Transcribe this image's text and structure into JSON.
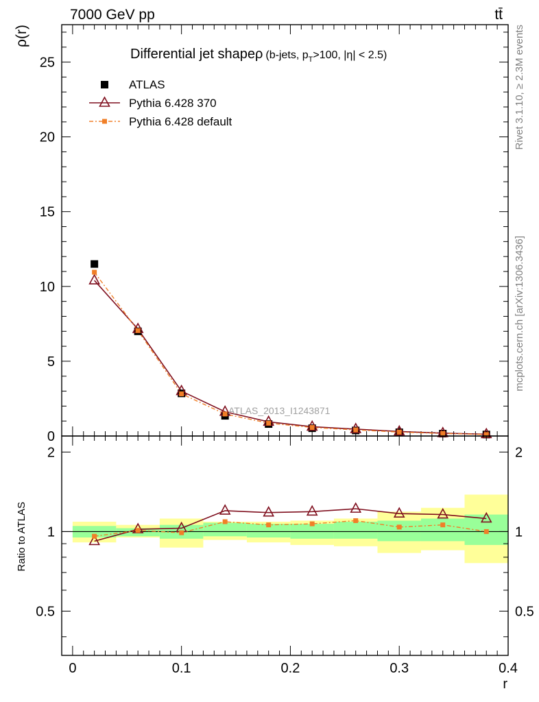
{
  "header": {
    "energy_label": "7000 GeV pp",
    "process_label": "tt̄",
    "side_rivet": "Rivet 3.1.10, ≥ 2.3M events",
    "side_mcplots": "mcplots.cern.ch [arXiv:1306.3436]",
    "watermark": "ATLAS_2013_I1243871"
  },
  "chart_data": [
    {
      "type": "line",
      "title": "Differential jet shape",
      "title_symbol": "ρ",
      "title_detail_pre": "(b-jets, p",
      "title_detail_sub": "T",
      "title_detail_post": ">100, |η| < 2.5)",
      "ylabel": "ρ(r)",
      "xlabel": "",
      "xlim": [
        -0.01,
        0.4
      ],
      "ylim": [
        0,
        27.5
      ],
      "yticks": [
        0,
        5,
        10,
        15,
        20,
        25
      ],
      "ytick_labels": [
        "0",
        "5",
        "10",
        "15",
        "20",
        "25"
      ],
      "legend_position": "top-left",
      "x": [
        0.02,
        0.06,
        0.1,
        0.14,
        0.18,
        0.22,
        0.26,
        0.3,
        0.34,
        0.38
      ],
      "series": [
        {
          "name": "ATLAS",
          "style": "data",
          "color": "#000000",
          "values": [
            11.5,
            7.0,
            2.85,
            1.35,
            0.8,
            0.52,
            0.37,
            0.25,
            0.16,
            0.1
          ]
        },
        {
          "name": "Pythia 6.428 370",
          "style": "line-triangle",
          "color": "#7f0f1e",
          "values": [
            10.4,
            7.15,
            3.0,
            1.62,
            0.95,
            0.62,
            0.46,
            0.3,
            0.19,
            0.12
          ]
        },
        {
          "name": "Pythia 6.428 default",
          "style": "dashdot-square",
          "color": "#f07f28",
          "values": [
            10.95,
            7.05,
            2.82,
            1.47,
            0.86,
            0.57,
            0.41,
            0.26,
            0.17,
            0.1
          ]
        }
      ]
    },
    {
      "type": "line",
      "ylabel": "Ratio to ATLAS",
      "xlabel": "r",
      "xlim": [
        -0.01,
        0.4
      ],
      "ylim": [
        0.34,
        2.3
      ],
      "yticks": [
        0.5,
        1,
        2
      ],
      "ytick_labels": [
        "0.5",
        "1",
        "2"
      ],
      "xticks": [
        0,
        0.1,
        0.2,
        0.3,
        0.4
      ],
      "xtick_labels": [
        "0",
        "0.1",
        "0.2",
        "0.3",
        "0.4"
      ],
      "bins": [
        [
          0.0,
          0.04
        ],
        [
          0.04,
          0.08
        ],
        [
          0.08,
          0.12
        ],
        [
          0.12,
          0.16
        ],
        [
          0.16,
          0.2
        ],
        [
          0.2,
          0.24
        ],
        [
          0.24,
          0.28
        ],
        [
          0.28,
          0.32
        ],
        [
          0.32,
          0.36
        ],
        [
          0.36,
          0.4
        ]
      ],
      "band_inner": [
        [
          0.95,
          1.05
        ],
        [
          0.96,
          1.03
        ],
        [
          0.94,
          1.06
        ],
        [
          0.96,
          1.08
        ],
        [
          0.95,
          1.07
        ],
        [
          0.94,
          1.07
        ],
        [
          0.94,
          1.09
        ],
        [
          0.92,
          1.1
        ],
        [
          0.92,
          1.12
        ],
        [
          0.89,
          1.16
        ]
      ],
      "band_outer": [
        [
          0.91,
          1.09
        ],
        [
          0.95,
          1.06
        ],
        [
          0.87,
          1.12
        ],
        [
          0.93,
          1.09
        ],
        [
          0.91,
          1.09
        ],
        [
          0.89,
          1.1
        ],
        [
          0.88,
          1.12
        ],
        [
          0.83,
          1.19
        ],
        [
          0.85,
          1.23
        ],
        [
          0.76,
          1.38
        ]
      ],
      "band_inner_color": "#99ff99",
      "band_outer_color": "#ffff99",
      "x": [
        0.02,
        0.06,
        0.1,
        0.14,
        0.18,
        0.22,
        0.26,
        0.3,
        0.34,
        0.38
      ],
      "series": [
        {
          "name": "Pythia 6.428 370",
          "style": "line-triangle",
          "color": "#7f0f1e",
          "values": [
            0.92,
            1.02,
            1.03,
            1.2,
            1.18,
            1.19,
            1.22,
            1.17,
            1.16,
            1.12
          ]
        },
        {
          "name": "Pythia 6.428 default",
          "style": "dashdot-square",
          "color": "#f07f28",
          "values": [
            0.96,
            1.01,
            0.99,
            1.09,
            1.06,
            1.07,
            1.1,
            1.04,
            1.06,
            1.0
          ]
        }
      ]
    }
  ]
}
